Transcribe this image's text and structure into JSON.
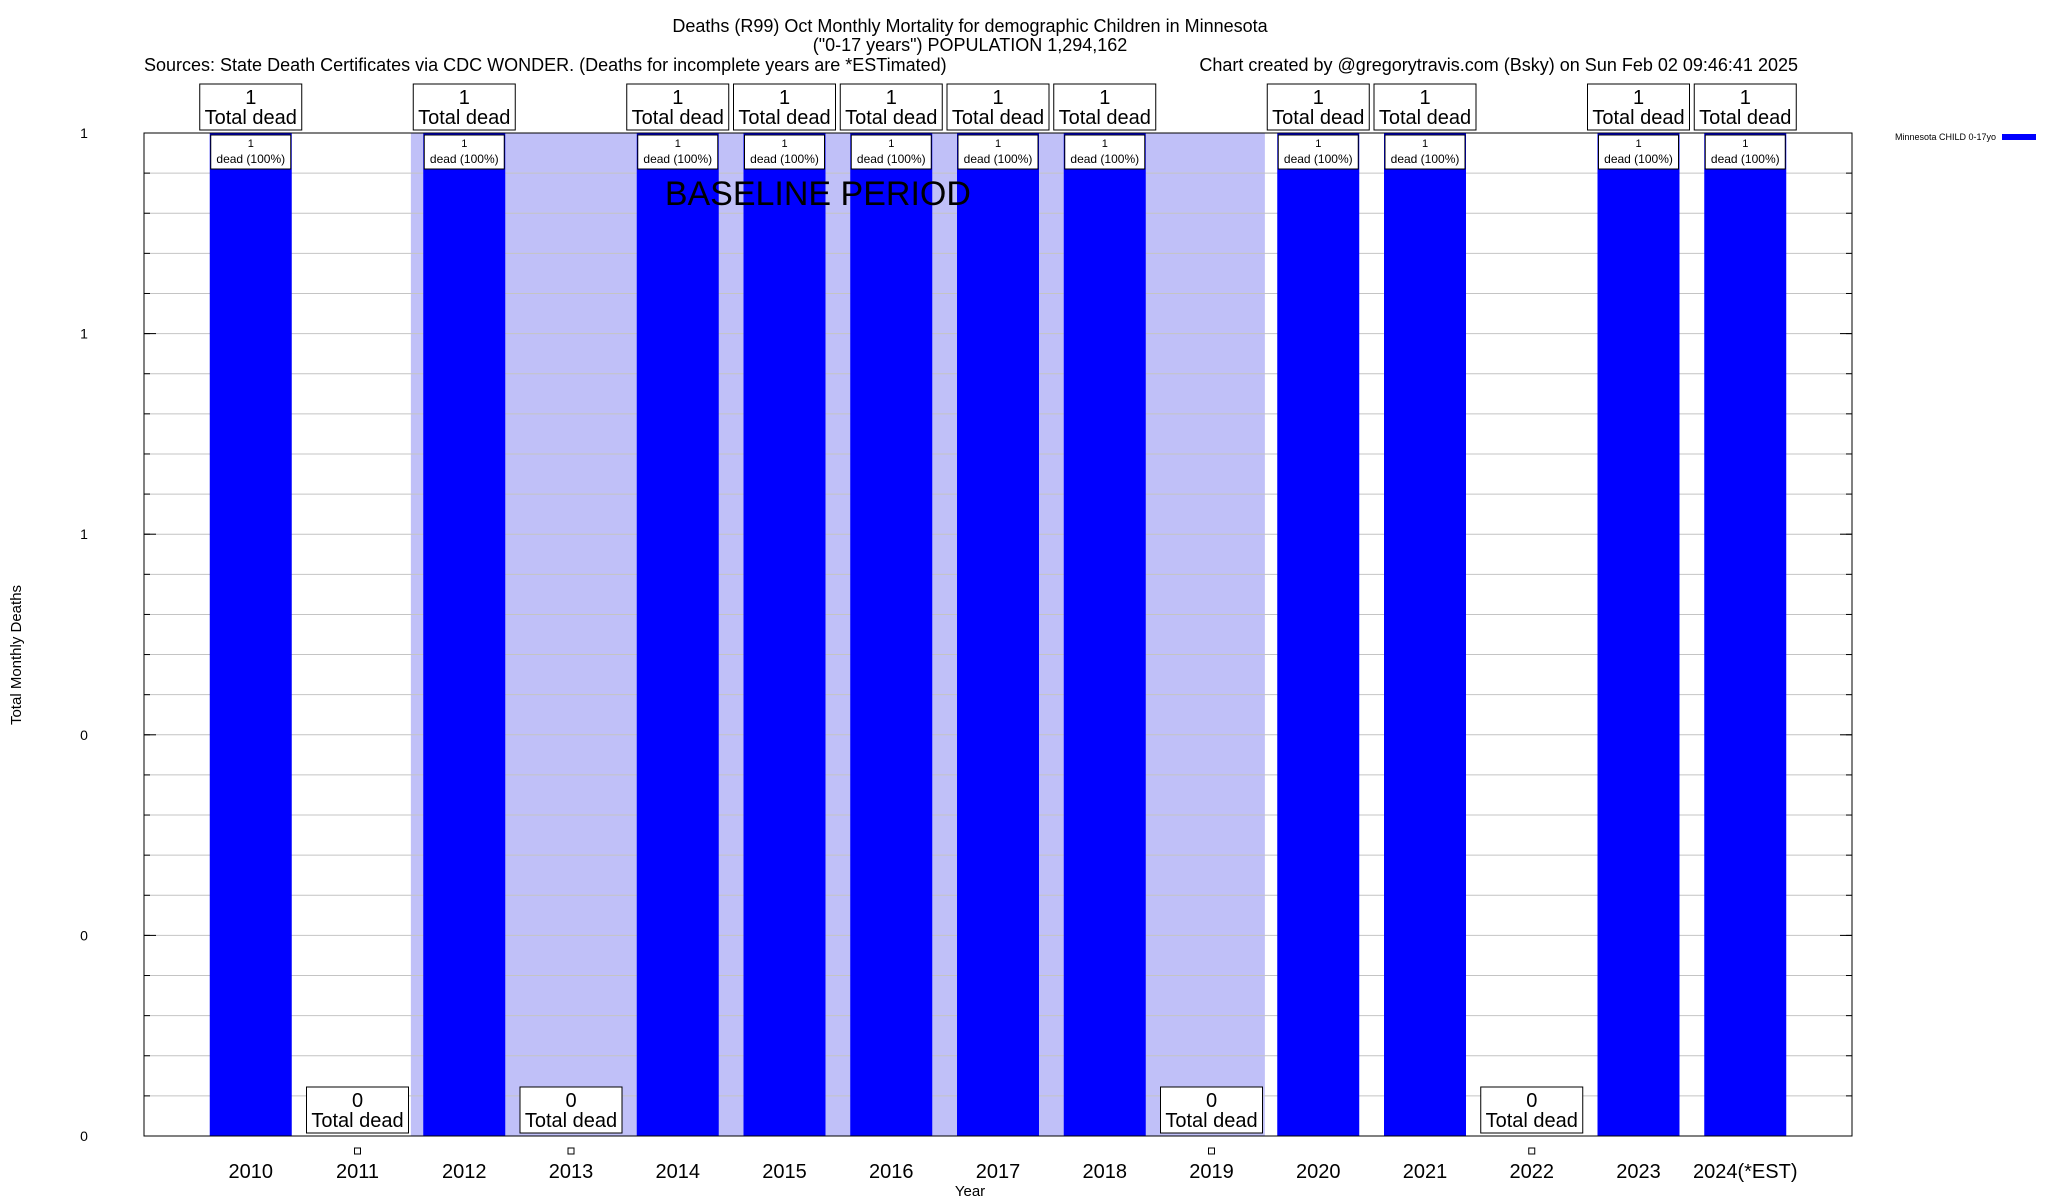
{
  "chart_data": {
    "type": "bar",
    "title": "Deaths (R99) Oct Monthly Mortality for demographic Children in Minnesota",
    "subtitle": "(\"0-17 years\") POPULATION 1,294,162",
    "sources": "Sources: State Death Certificates via CDC WONDER. (Deaths for incomplete years are *ESTimated)",
    "credit": "Chart created by @gregorytravis.com (Bsky) on Sun Feb 02 09:46:41 2025",
    "xlabel": "Year",
    "ylabel": "Total Monthly Deaths",
    "ylim": [
      0,
      1
    ],
    "y_tick_values": [
      0,
      0.2,
      0.4,
      0.6,
      0.8,
      1.0
    ],
    "y_tick_labels": [
      "0",
      "0",
      "0",
      "1",
      "1",
      "1"
    ],
    "grid": true,
    "legend_position": "top-right",
    "categories": [
      "2010",
      "2011",
      "2012",
      "2013",
      "2014",
      "2015",
      "2016",
      "2017",
      "2018",
      "2019",
      "2020",
      "2021",
      "2022",
      "2023",
      "2024(*EST)"
    ],
    "series": [
      {
        "name": "Minnesota CHILD 0-17yo",
        "color": "#0000ff",
        "values": [
          1,
          0,
          1,
          0,
          1,
          1,
          1,
          1,
          1,
          0,
          1,
          1,
          0,
          1,
          1
        ]
      }
    ],
    "total_labels": [
      "1",
      "0",
      "1",
      "0",
      "1",
      "1",
      "1",
      "1",
      "1",
      "0",
      "1",
      "1",
      "0",
      "1",
      "1"
    ],
    "total_suffix": "Total dead",
    "bar_labels": [
      "1",
      "",
      "1",
      "",
      "1",
      "1",
      "1",
      "1",
      "1",
      "",
      "1",
      "1",
      "",
      "1",
      "1"
    ],
    "bar_label_suffix": "dead (100%)",
    "baseline_period": {
      "label": "BASELINE PERIOD",
      "start": "2012",
      "end": "2019",
      "color": "#c0c0f8"
    }
  }
}
